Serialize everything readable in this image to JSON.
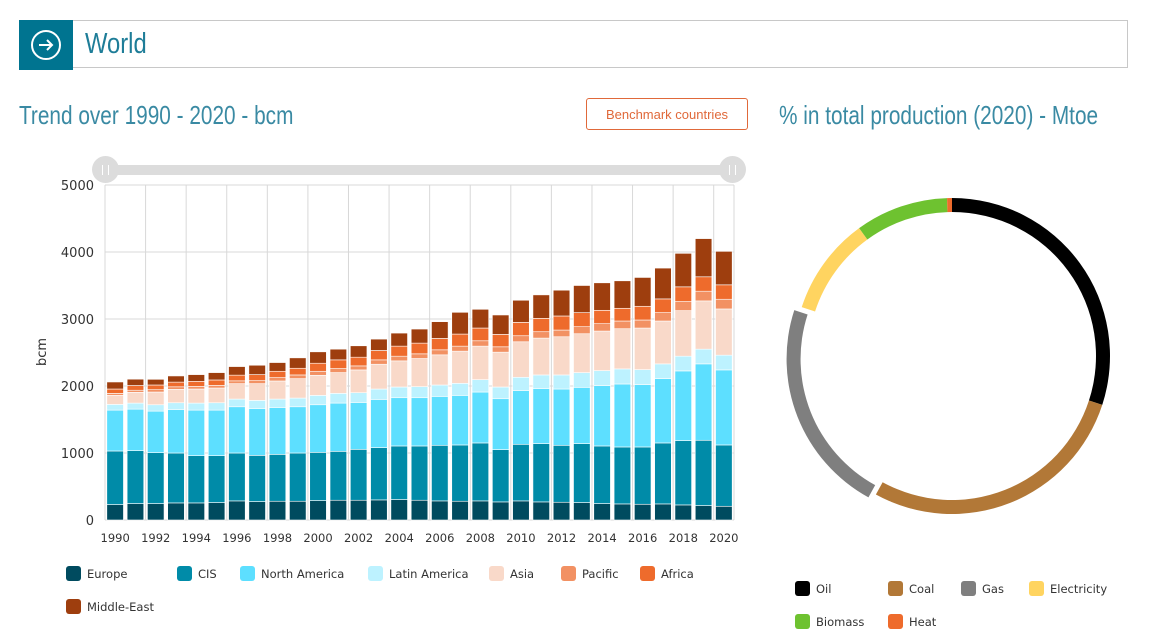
{
  "header": {
    "title": "World",
    "icon": "arrow-right-circle-icon"
  },
  "left": {
    "title": "Trend over 1990 - 2020 - bcm",
    "benchmark_label": "Benchmark countries",
    "slider": {
      "range_start": 1990,
      "range_end": 2020
    }
  },
  "right": {
    "title": "% in total production (2020) - Mtoe"
  },
  "chart_data": [
    {
      "type": "bar",
      "stacked": true,
      "title": "Trend over 1990 - 2020 - bcm",
      "xlabel": "",
      "ylabel": "bcm",
      "ylim": [
        0,
        5000
      ],
      "yticks": [
        0,
        1000,
        2000,
        3000,
        4000,
        5000
      ],
      "grid": true,
      "legend": "bottom",
      "categories": [
        "1990",
        "1991",
        "1992",
        "1993",
        "1994",
        "1995",
        "1996",
        "1997",
        "1998",
        "1999",
        "2000",
        "2001",
        "2002",
        "2003",
        "2004",
        "2005",
        "2006",
        "2007",
        "2008",
        "2009",
        "2010",
        "2011",
        "2012",
        "2013",
        "2014",
        "2015",
        "2016",
        "2017",
        "2018",
        "2019",
        "2020"
      ],
      "xtick_labels": [
        "1990",
        "1992",
        "1994",
        "1996",
        "1998",
        "2000",
        "2002",
        "2004",
        "2006",
        "2008",
        "2010",
        "2012",
        "2014",
        "2016",
        "2018",
        "2020"
      ],
      "series": [
        {
          "name": "Europe",
          "color": "#004b5f",
          "values": [
            230,
            245,
            245,
            255,
            255,
            260,
            285,
            275,
            280,
            280,
            290,
            295,
            295,
            300,
            305,
            295,
            285,
            280,
            285,
            270,
            285,
            270,
            265,
            260,
            245,
            240,
            235,
            240,
            225,
            215,
            205
          ]
        },
        {
          "name": "CIS",
          "color": "#008ba8",
          "values": [
            800,
            790,
            760,
            745,
            705,
            700,
            715,
            690,
            700,
            720,
            720,
            730,
            760,
            780,
            800,
            810,
            830,
            840,
            865,
            780,
            845,
            870,
            850,
            880,
            860,
            850,
            855,
            910,
            960,
            975,
            915
          ]
        },
        {
          "name": "North America",
          "color": "#5ddfff",
          "values": [
            610,
            620,
            620,
            650,
            680,
            680,
            690,
            700,
            700,
            690,
            710,
            720,
            700,
            720,
            720,
            720,
            730,
            740,
            760,
            760,
            800,
            820,
            840,
            840,
            900,
            940,
            930,
            960,
            1040,
            1140,
            1120
          ]
        },
        {
          "name": "Latin America",
          "color": "#bdf2ff",
          "values": [
            85,
            90,
            95,
            100,
            105,
            110,
            115,
            120,
            125,
            130,
            140,
            145,
            145,
            155,
            160,
            165,
            170,
            180,
            185,
            175,
            200,
            205,
            210,
            220,
            225,
            225,
            225,
            220,
            220,
            220,
            220
          ]
        },
        {
          "name": "Asia",
          "color": "#f9d9c9",
          "values": [
            135,
            160,
            190,
            200,
            210,
            220,
            230,
            250,
            270,
            290,
            300,
            310,
            340,
            370,
            390,
            420,
            450,
            480,
            500,
            520,
            530,
            550,
            570,
            580,
            590,
            600,
            620,
            640,
            680,
            720,
            690
          ]
        },
        {
          "name": "Pacific",
          "color": "#f29163",
          "values": [
            30,
            32,
            35,
            38,
            40,
            40,
            42,
            45,
            50,
            55,
            60,
            60,
            60,
            65,
            70,
            70,
            75,
            75,
            80,
            80,
            90,
            95,
            100,
            105,
            110,
            115,
            120,
            125,
            135,
            145,
            145
          ]
        },
        {
          "name": "Africa",
          "color": "#ee6b2c",
          "values": [
            65,
            70,
            70,
            70,
            75,
            80,
            85,
            90,
            95,
            100,
            120,
            130,
            130,
            140,
            150,
            160,
            170,
            180,
            190,
            185,
            200,
            200,
            210,
            210,
            200,
            190,
            205,
            205,
            220,
            215,
            215
          ]
        },
        {
          "name": "Middle-East",
          "color": "#9e3e0e",
          "values": [
            105,
            95,
            85,
            92,
            100,
            110,
            128,
            140,
            130,
            155,
            170,
            160,
            170,
            170,
            195,
            210,
            250,
            325,
            280,
            290,
            330,
            350,
            385,
            405,
            410,
            410,
            430,
            460,
            500,
            570,
            500
          ]
        }
      ]
    },
    {
      "type": "pie",
      "donut": true,
      "title": "% in total production (2020) - Mtoe",
      "legend": "bottom",
      "slices": [
        {
          "name": "Oil",
          "color": "#000000",
          "value": 30
        },
        {
          "name": "Coal",
          "color": "#b27837",
          "value": 28
        },
        {
          "name": "Gas",
          "color": "#7f7f7f",
          "value": 22
        },
        {
          "name": "Electricity",
          "color": "#ffd460",
          "value": 10
        },
        {
          "name": "Biomass",
          "color": "#6ec230",
          "value": 9.5
        },
        {
          "name": "Heat",
          "color": "#ee6b2c",
          "value": 0.5
        }
      ],
      "sliced": [
        "Gas"
      ]
    }
  ]
}
